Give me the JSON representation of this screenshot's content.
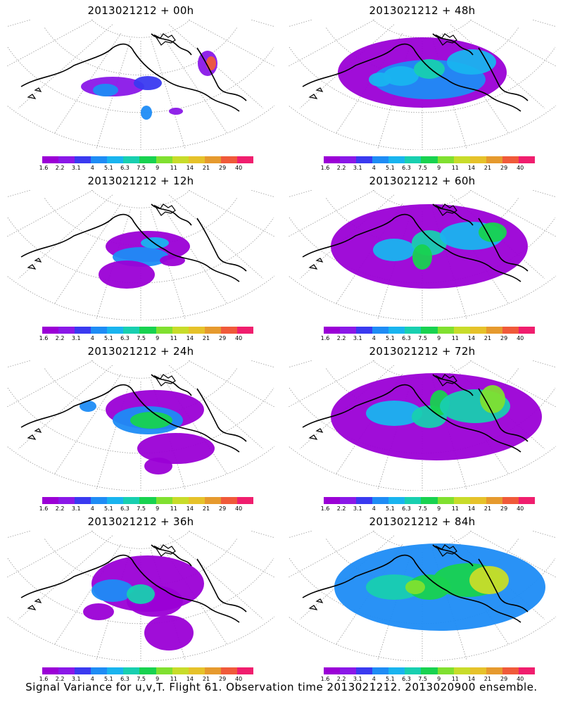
{
  "panels": [
    {
      "title": "2013021212 + 00h"
    },
    {
      "title": "2013021212 + 48h"
    },
    {
      "title": "2013021212 + 12h"
    },
    {
      "title": "2013021212 + 60h"
    },
    {
      "title": "2013021212 + 24h"
    },
    {
      "title": "2013021212 + 72h"
    },
    {
      "title": "2013021212 + 36h"
    },
    {
      "title": "2013021212 + 84h"
    }
  ],
  "colorbar": {
    "labels": [
      "1.6",
      "2.2",
      "3.1",
      "4",
      "5.1",
      "6.3",
      "7.5",
      "9",
      "11",
      "14",
      "21",
      "29",
      "40"
    ],
    "colors": [
      "#9b00d6",
      "#8a18e8",
      "#3a3af0",
      "#1e8cf5",
      "#19b4ef",
      "#18cfb0",
      "#18d250",
      "#80e030",
      "#c8dc2a",
      "#e6c22a",
      "#e69a2e",
      "#f05a3a",
      "#f01e6e"
    ]
  },
  "footer": "Signal Variance for u,v,T. Flight 61. Observation time 2013021212. 2013020900 ensemble."
}
